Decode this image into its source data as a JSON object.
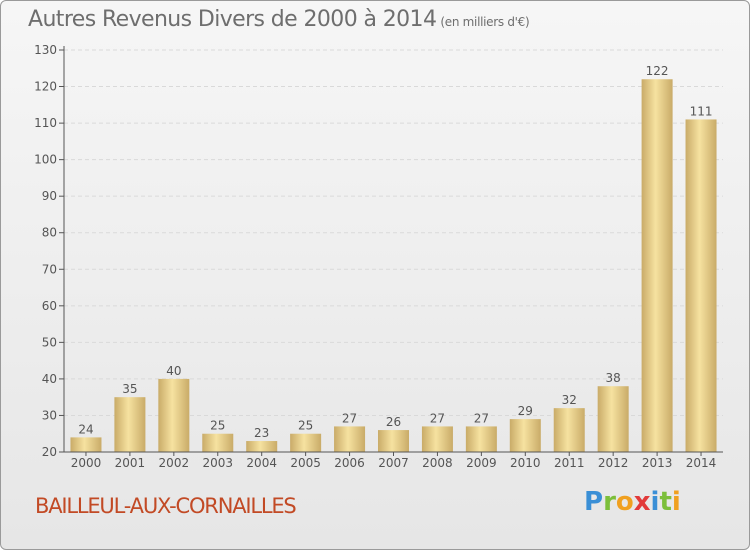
{
  "header": {
    "title": "Autres Revenus Divers de 2000 à 2014",
    "unit": "(en milliers d'€)"
  },
  "footer": {
    "place": "BAILLEUL-AUX-CORNAILLES",
    "logo": "Proxiti"
  },
  "colors": {
    "bar_light": "#f6e2a0",
    "bar_dark": "#c9ab68",
    "axis": "#555555",
    "grid": "#d9d9d9",
    "text": "#6e6e6e",
    "place": "#c24a25"
  },
  "chart_data": {
    "type": "bar",
    "title": "Autres Revenus Divers de 2000 à 2014",
    "subtitle": "(en milliers d'€)",
    "categories": [
      "2000",
      "2001",
      "2002",
      "2003",
      "2004",
      "2005",
      "2006",
      "2007",
      "2008",
      "2009",
      "2010",
      "2011",
      "2012",
      "2013",
      "2014"
    ],
    "values": [
      24,
      35,
      40,
      25,
      23,
      25,
      27,
      26,
      27,
      27,
      29,
      32,
      38,
      122,
      111
    ],
    "ylim": [
      20,
      130
    ],
    "yticks": [
      20,
      30,
      40,
      50,
      60,
      70,
      80,
      90,
      100,
      110,
      120,
      130
    ],
    "grid": "horizontal",
    "data_labels": true,
    "xlabel": "",
    "ylabel": ""
  }
}
